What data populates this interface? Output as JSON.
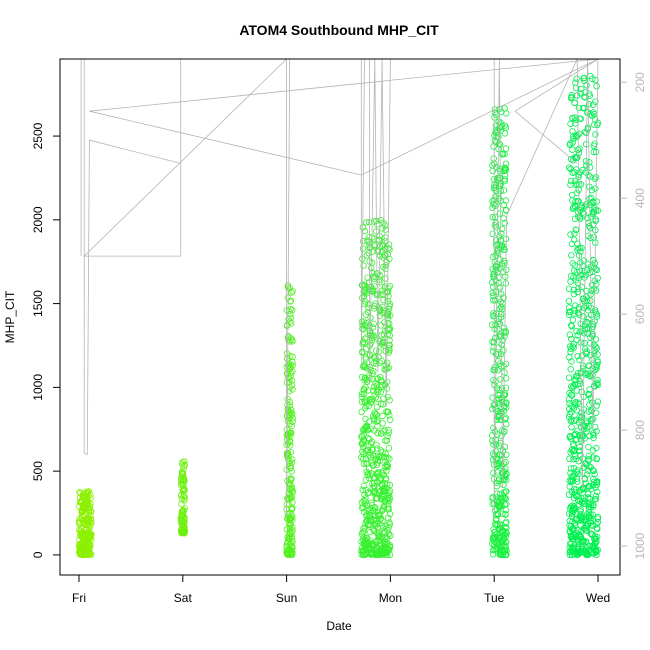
{
  "chart_data": {
    "type": "scatter",
    "title": "ATOM4 Southbound MHP_CIT",
    "xlabel": "Date",
    "ylabel": "MHP_CIT",
    "x_ticks": [
      "Fri",
      "Sat",
      "Sun",
      "Mon",
      "Tue",
      "Wed"
    ],
    "xlim": [
      -0.1,
      5.2
    ],
    "ylim": [
      -120,
      2960
    ],
    "y_ticks": [
      0,
      500,
      1000,
      1500,
      2000,
      2500
    ],
    "y2_ticks": [
      200,
      400,
      600,
      800,
      1000
    ],
    "y2lim": [
      1050,
      160
    ],
    "point_color_low": "#8cf000",
    "point_color_high": "#00f050",
    "line_color": "#b4b4b4",
    "clusters": [
      {
        "x_start": 0.0,
        "x_end": 0.12,
        "y_min": 0,
        "y_max": 380,
        "n": 220
      },
      {
        "x_start": 0.98,
        "x_end": 1.02,
        "y_min": 130,
        "y_max": 560,
        "n": 90
      },
      {
        "x_start": 2.0,
        "x_end": 2.06,
        "y_min": 0,
        "y_max": 1680,
        "n": 200
      },
      {
        "x_start": 2.72,
        "x_end": 3.0,
        "y_min": 0,
        "y_max": 2000,
        "n": 650
      },
      {
        "x_start": 3.98,
        "x_end": 4.12,
        "y_min": 0,
        "y_max": 2680,
        "n": 420
      },
      {
        "x_start": 4.72,
        "x_end": 5.0,
        "y_min": 0,
        "y_max": 2860,
        "n": 700
      }
    ],
    "line_points": [
      [
        0.02,
        500
      ],
      [
        0.02,
        160
      ],
      [
        0.05,
        160
      ],
      [
        0.05,
        840
      ],
      [
        0.08,
        842
      ],
      [
        0.1,
        300
      ],
      [
        0.98,
        340
      ],
      [
        0.98,
        160
      ],
      [
        0.98,
        500
      ],
      [
        0.05,
        500
      ],
      [
        2.0,
        160
      ],
      [
        2.0,
        950
      ],
      [
        2.03,
        160
      ],
      [
        2.5,
        160
      ],
      [
        2.72,
        160
      ],
      [
        2.72,
        690
      ],
      [
        2.75,
        160
      ],
      [
        2.8,
        160
      ],
      [
        2.8,
        720
      ],
      [
        2.85,
        160
      ],
      [
        2.88,
        700
      ],
      [
        2.92,
        160
      ],
      [
        2.96,
        760
      ],
      [
        3.0,
        160
      ],
      [
        4.0,
        160
      ],
      [
        4.0,
        950
      ],
      [
        4.05,
        160
      ],
      [
        4.08,
        900
      ],
      [
        4.12,
        430
      ],
      [
        4.8,
        160
      ],
      [
        4.85,
        900
      ],
      [
        4.9,
        160
      ],
      [
        4.95,
        800
      ],
      [
        5.0,
        160
      ],
      [
        0.1,
        250
      ],
      [
        2.72,
        360
      ],
      [
        5.0,
        160
      ],
      [
        4.2,
        250
      ],
      [
        4.8,
        340
      ]
    ]
  }
}
